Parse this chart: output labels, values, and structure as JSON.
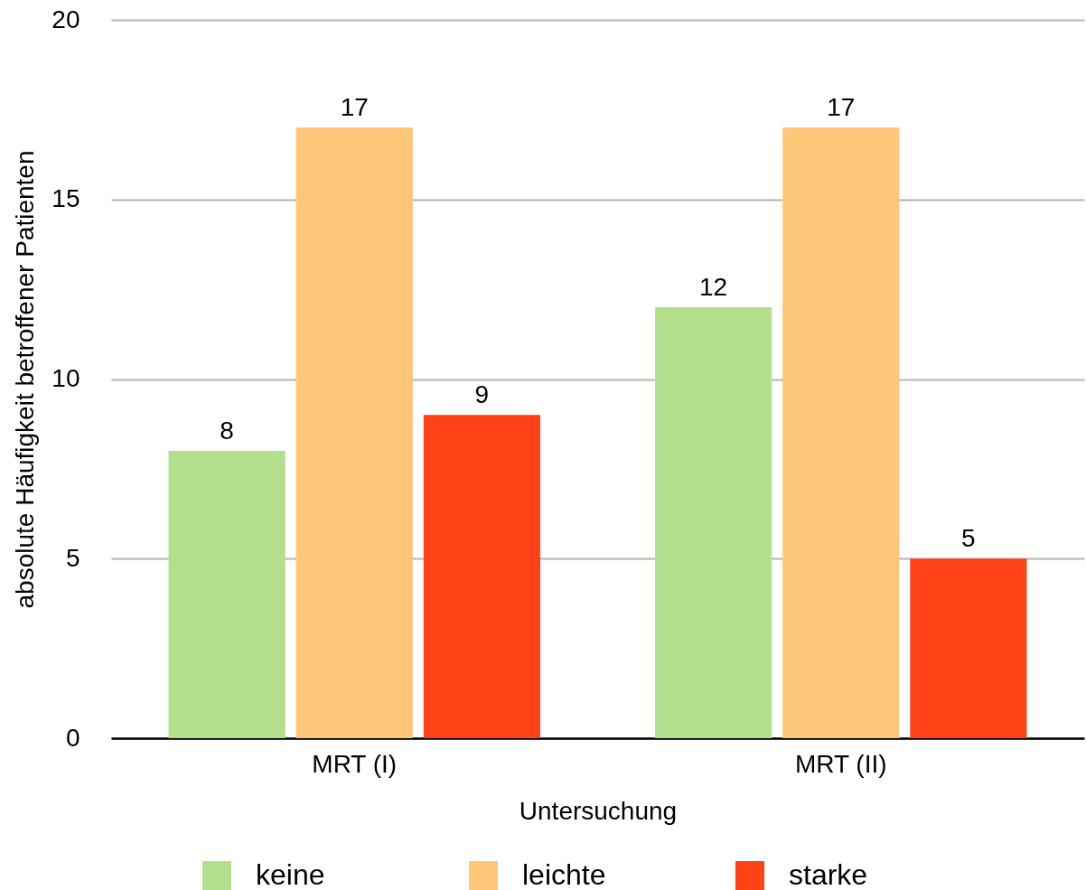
{
  "chart_data": {
    "type": "bar",
    "xlabel": "Untersuchung",
    "ylabel": "absolute Häufigkeit betroffener Patienten",
    "categories": [
      "MRT (I)",
      "MRT (II)"
    ],
    "series": [
      {
        "name": "keine",
        "color": "#b3de8c",
        "values": [
          8,
          12
        ]
      },
      {
        "name": "leichte",
        "color": "#fec679",
        "values": [
          17,
          17
        ]
      },
      {
        "name": "starke",
        "color": "#fe4216",
        "values": [
          9,
          5
        ]
      }
    ],
    "ylim": [
      0,
      20
    ],
    "yticks": [
      0,
      5,
      10,
      15,
      20
    ],
    "grid": "y",
    "legend": "bottom",
    "data_labels": true
  }
}
